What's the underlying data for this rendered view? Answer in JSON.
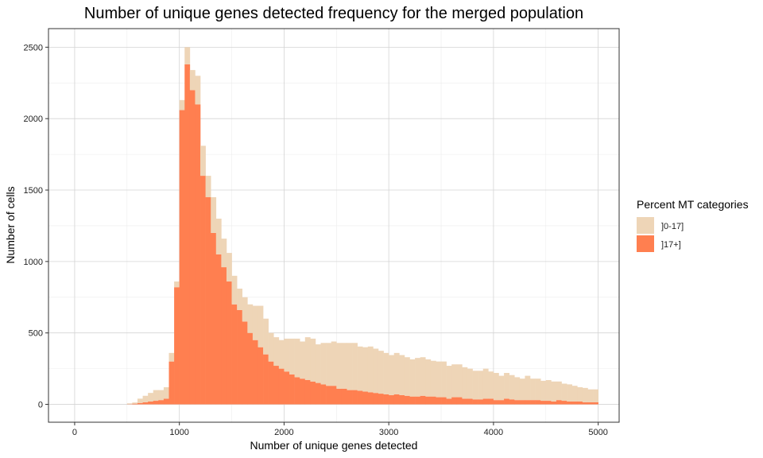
{
  "chart_data": {
    "type": "bar",
    "title": "Number of unique genes detected frequency for the merged population",
    "xlabel": "Number of unique genes detected",
    "ylabel": "Number of cells",
    "xlim": [
      -250,
      5200
    ],
    "ylim": [
      -125,
      2630
    ],
    "x_ticks": [
      "0",
      "1000",
      "2000",
      "3000",
      "4000",
      "5000"
    ],
    "x_tick_values": [
      0,
      1000,
      2000,
      3000,
      4000,
      5000
    ],
    "y_ticks": [
      "0",
      "500",
      "1000",
      "1500",
      "2000",
      "2500"
    ],
    "y_tick_values": [
      0,
      500,
      1000,
      1500,
      2000,
      2500
    ],
    "grid": true,
    "stacked": true,
    "bin_width": 50,
    "bin_start": 0,
    "legend": {
      "title": "Percent MT categories",
      "position": "right"
    },
    "series": [
      {
        "name": "]17+]",
        "color": "#FF7F50",
        "values": [
          0,
          0,
          0,
          0,
          0,
          0,
          0,
          0,
          0,
          0,
          2,
          5,
          10,
          15,
          20,
          25,
          30,
          40,
          300,
          820,
          2060,
          2380,
          2200,
          2100,
          1600,
          1450,
          1200,
          1050,
          960,
          860,
          700,
          660,
          580,
          500,
          450,
          400,
          350,
          300,
          270,
          250,
          230,
          210,
          190,
          180,
          170,
          160,
          150,
          140,
          130,
          130,
          110,
          110,
          100,
          100,
          95,
          90,
          85,
          80,
          75,
          70,
          65,
          70,
          65,
          60,
          55,
          55,
          60,
          55,
          55,
          50,
          50,
          40,
          50,
          50,
          40,
          40,
          35,
          35,
          40,
          40,
          30,
          30,
          40,
          35,
          30,
          30,
          30,
          30,
          30,
          25,
          25,
          20,
          30,
          25,
          20,
          20,
          20,
          15,
          15,
          15
        ]
      },
      {
        "name": "]0-17]",
        "color": "#EED5B7",
        "values": [
          0,
          0,
          0,
          0,
          0,
          0,
          0,
          0,
          0,
          0,
          5,
          8,
          30,
          45,
          60,
          75,
          70,
          80,
          60,
          40,
          70,
          120,
          140,
          200,
          210,
          150,
          250,
          250,
          200,
          200,
          200,
          150,
          170,
          200,
          240,
          290,
          250,
          200,
          200,
          200,
          230,
          250,
          270,
          260,
          300,
          300,
          270,
          290,
          300,
          310,
          320,
          320,
          330,
          330,
          310,
          310,
          320,
          310,
          300,
          290,
          280,
          290,
          280,
          270,
          260,
          270,
          270,
          260,
          250,
          250,
          250,
          230,
          230,
          230,
          220,
          210,
          200,
          200,
          210,
          190,
          190,
          170,
          180,
          170,
          160,
          150,
          170,
          150,
          150,
          140,
          145,
          140,
          130,
          120,
          120,
          110,
          100,
          100,
          90,
          90
        ]
      }
    ]
  }
}
